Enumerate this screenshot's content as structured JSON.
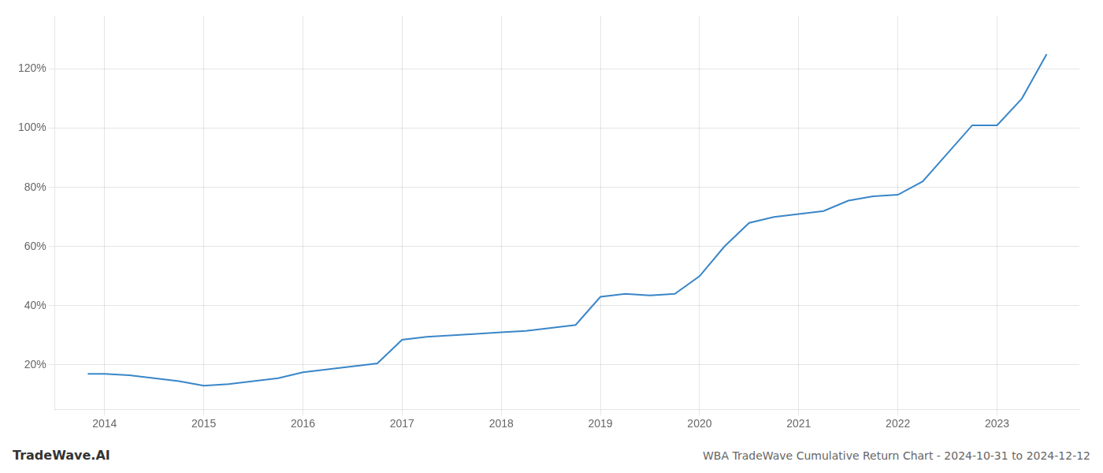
{
  "chart_data": {
    "type": "line",
    "title": "WBA TradeWave Cumulative Return Chart - 2024-10-31 to 2024-12-12",
    "annotations": [
      "TradeWave.AI"
    ],
    "x": [
      2013.83,
      2014.0,
      2014.25,
      2014.75,
      2015.0,
      2015.25,
      2015.75,
      2016.0,
      2016.25,
      2016.75,
      2017.0,
      2017.25,
      2017.75,
      2018.0,
      2018.25,
      2018.5,
      2018.75,
      2019.0,
      2019.25,
      2019.5,
      2019.75,
      2020.0,
      2020.25,
      2020.5,
      2020.75,
      2021.0,
      2021.25,
      2021.5,
      2021.75,
      2022.0,
      2022.25,
      2022.75,
      2023.0,
      2023.25,
      2023.5
    ],
    "values": [
      0.17,
      0.17,
      0.165,
      0.145,
      0.13,
      0.135,
      0.155,
      0.175,
      0.185,
      0.205,
      0.285,
      0.295,
      0.305,
      0.31,
      0.315,
      0.325,
      0.335,
      0.43,
      0.44,
      0.435,
      0.44,
      0.5,
      0.6,
      0.68,
      0.7,
      0.71,
      0.72,
      0.755,
      0.77,
      0.775,
      0.82,
      1.01,
      1.01,
      1.1,
      1.25
    ],
    "color": "#3a86c8",
    "xlim": [
      2013.5,
      2023.83
    ],
    "ylim": [
      0.05,
      1.38
    ],
    "xticks": [
      2014,
      2015,
      2016,
      2017,
      2018,
      2019,
      2020,
      2021,
      2022,
      2023
    ],
    "yticks": [
      {
        "value": 0.2,
        "label": "20%"
      },
      {
        "value": 0.4,
        "label": "40%"
      },
      {
        "value": 0.6,
        "label": "60%"
      },
      {
        "value": 0.8,
        "label": "80%"
      },
      {
        "value": 1.0,
        "label": "100%"
      },
      {
        "value": 1.2,
        "label": "120%"
      }
    ],
    "grid": true
  }
}
